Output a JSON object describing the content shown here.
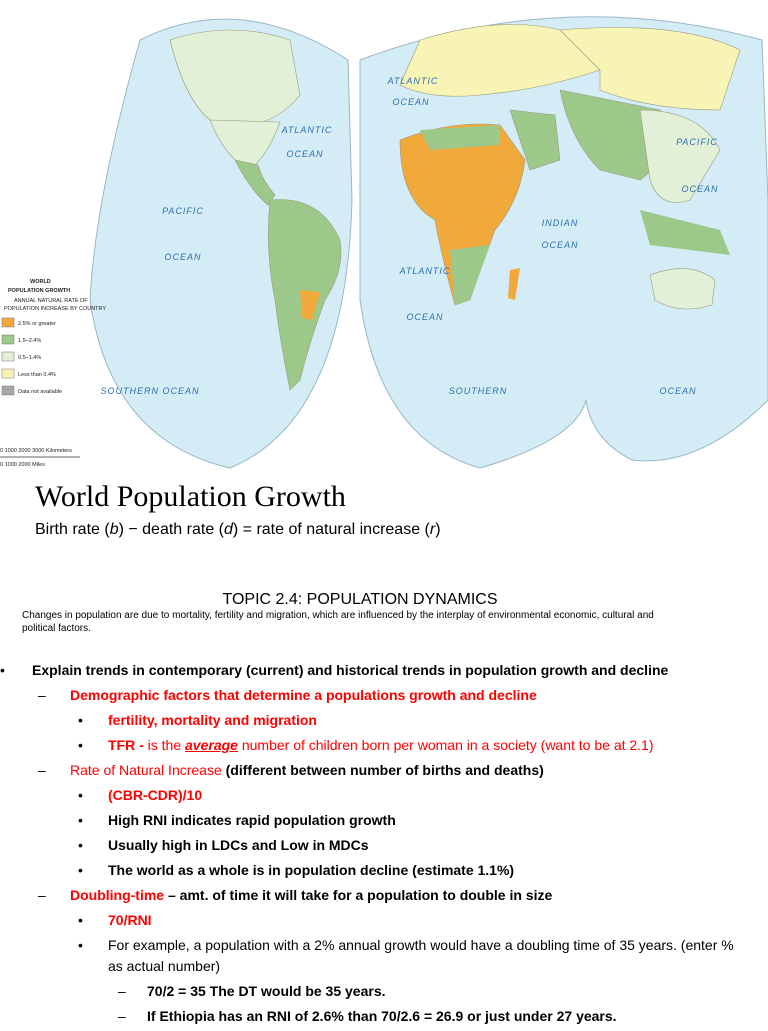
{
  "map": {
    "legend": {
      "title_lines": [
        "WORLD",
        "POPULATION GROWTH"
      ],
      "subtitle_lines": [
        "ANNUAL NATURAL RATE OF",
        "POPULATION INCREASE BY COUNTRY"
      ],
      "items": [
        {
          "label": "2.5% or greater",
          "color": "#f2a93b"
        },
        {
          "label": "1.5–2.4%",
          "color": "#9cc98a"
        },
        {
          "label": "0.5–1.4%",
          "color": "#e1f0d6"
        },
        {
          "label": "Less than 0.4%",
          "color": "#f8f4b6"
        },
        {
          "label": "Data not available",
          "color": "#a6a6a6"
        }
      ]
    },
    "ocean_labels": [
      "ATLANTIC",
      "OCEAN",
      "PACIFIC",
      "OCEAN",
      "ATLANTIC",
      "OCEAN",
      "ATLANTIC",
      "OCEAN",
      "INDIAN",
      "OCEAN",
      "PACIFIC",
      "OCEAN",
      "SOUTHERN OCEAN",
      "SOUTHERN",
      "OCEAN"
    ],
    "scale": [
      "0    1000   2000   3000 Kilometers",
      "0      1000      2000 Miles"
    ]
  },
  "title": "World Population Growth",
  "formula": [
    {
      "text": "Birth rate ("
    },
    {
      "text": "b",
      "italic": true
    },
    {
      "text": ") − death rate ("
    },
    {
      "text": "d",
      "italic": true
    },
    {
      "text": ") = rate of natural increase ("
    },
    {
      "text": "r",
      "italic": true
    },
    {
      "text": ")"
    }
  ],
  "topic": "TOPIC 2.4: POPULATION DYNAMICS",
  "intro": "Changes in population are due to mortality, fertility and migration, which are influenced by the interplay of environmental economic, cultural and political factors.",
  "outline": [
    {
      "level": 0,
      "bullet": "•",
      "runs": [
        {
          "text": "Explain trends in contemporary (current) and historical trends in population growth and decline",
          "bold": true
        }
      ]
    },
    {
      "level": 1,
      "bullet": "–",
      "runs": [
        {
          "text": "Demographic factors that determine a populations growth and decline",
          "bold": true,
          "color": "#ff0000"
        }
      ]
    },
    {
      "level": 2,
      "bullet": "•",
      "runs": [
        {
          "text": "fertility, mortality and migration",
          "bold": true,
          "color": "#ff0000"
        }
      ]
    },
    {
      "level": 2,
      "bullet": "•",
      "runs": [
        {
          "text": "TFR - ",
          "bold": true,
          "color": "#ff0000"
        },
        {
          "text": "is the ",
          "color": "#ff0000"
        },
        {
          "text": "average",
          "bold": true,
          "italic": true,
          "underline": true,
          "color": "#ff0000"
        },
        {
          "text": " number of children born per woman in a society (want to be at 2.1)",
          "color": "#ff0000"
        }
      ]
    },
    {
      "level": 1,
      "bullet": "–",
      "runs": [
        {
          "text": "Rate of Natural Increase",
          "color": "#ff0000"
        },
        {
          "text": " (different between number of births and deaths)",
          "bold": true
        }
      ]
    },
    {
      "level": 2,
      "bullet": "•",
      "runs": [
        {
          "text": "(CBR-CDR)/10",
          "bold": true,
          "color": "#ff0000"
        }
      ]
    },
    {
      "level": 2,
      "bullet": "•",
      "runs": [
        {
          "text": "High RNI indicates rapid population growth",
          "bold": true
        }
      ]
    },
    {
      "level": 2,
      "bullet": "•",
      "runs": [
        {
          "text": "Usually high in LDCs and Low in MDCs",
          "bold": true
        }
      ]
    },
    {
      "level": 2,
      "bullet": "•",
      "runs": [
        {
          "text": "The world as a whole is in population decline (estimate 1.1%)",
          "bold": true
        }
      ]
    },
    {
      "level": 1,
      "bullet": "–",
      "runs": [
        {
          "text": "Doubling-time",
          "bold": true,
          "color": "#ff0000"
        },
        {
          "text": " – amt. of time it will take for a population to double in size",
          "bold": true
        }
      ]
    },
    {
      "level": 2,
      "bullet": "•",
      "runs": [
        {
          "text": "70/RNI",
          "bold": true,
          "color": "#ff0000"
        }
      ]
    },
    {
      "level": 2,
      "bullet": "•",
      "runs": [
        {
          "text": "For example, a population with a 2% annual growth would have a doubling time of 35 years. (enter % as actual number)"
        }
      ]
    },
    {
      "level": 3,
      "bullet": "–",
      "runs": [
        {
          "text": "70/2 = 35 The DT would be 35 years.",
          "bold": true
        }
      ]
    },
    {
      "level": 3,
      "bullet": "–",
      "runs": [
        {
          "text": "If Ethiopia has an RNI of 2.6% than 70/2.6 = 26.9 or just under 27 years.",
          "bold": true
        }
      ]
    }
  ]
}
